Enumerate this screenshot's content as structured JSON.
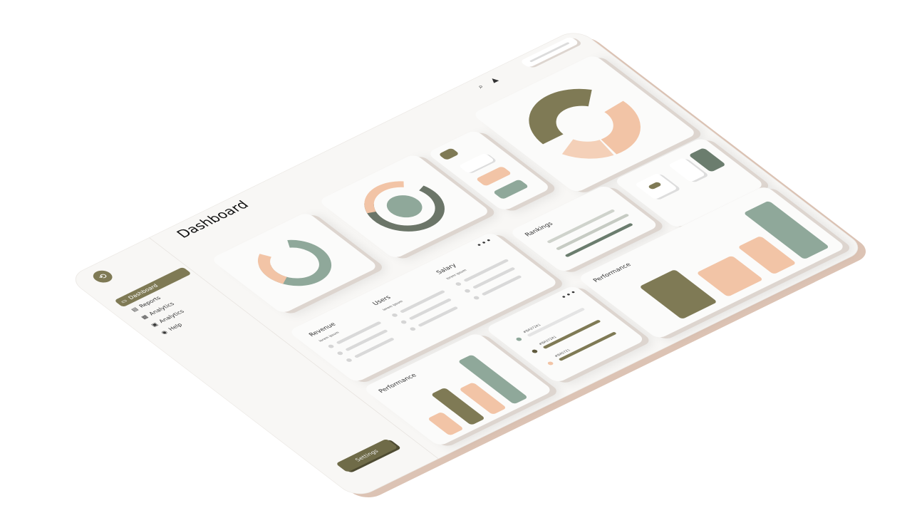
{
  "colors": {
    "olive": "#7f7a55",
    "sage": "#8fa89a",
    "peach": "#f2c4a6",
    "dark_sage": "#6b7d6e",
    "board": "#f8f7f5"
  },
  "header": {
    "title": "Dashboard",
    "icons": [
      "search-icon",
      "bell-icon"
    ]
  },
  "sidebar": {
    "logo_icon": "logo-icon",
    "items": [
      {
        "label": "Dashboard",
        "icon": "dashboard-icon",
        "active": true
      },
      {
        "label": "Reports",
        "icon": "calendar-icon"
      },
      {
        "label": "Analytics",
        "icon": "chart-icon"
      },
      {
        "label": "Analytics",
        "icon": "analytics-icon"
      },
      {
        "label": "Help",
        "icon": "help-icon"
      }
    ],
    "settings_label": "Settings"
  },
  "stats": [
    {
      "label": "Revenue",
      "sub": "lorem ipsum"
    },
    {
      "label": "Users",
      "sub": "lorem ipsum"
    },
    {
      "label": "Salary",
      "sub": "lorem ipsum"
    }
  ],
  "rankings": {
    "label": "Rankings"
  },
  "bar_card": {
    "label": "Performance",
    "more": "•••"
  },
  "legend_card": {
    "items": [
      "#BA372A1",
      "#BA372A1",
      "#BA5721"
    ],
    "more": "•••"
  },
  "performance": {
    "label": "Performance"
  },
  "stats_more": "•••"
}
